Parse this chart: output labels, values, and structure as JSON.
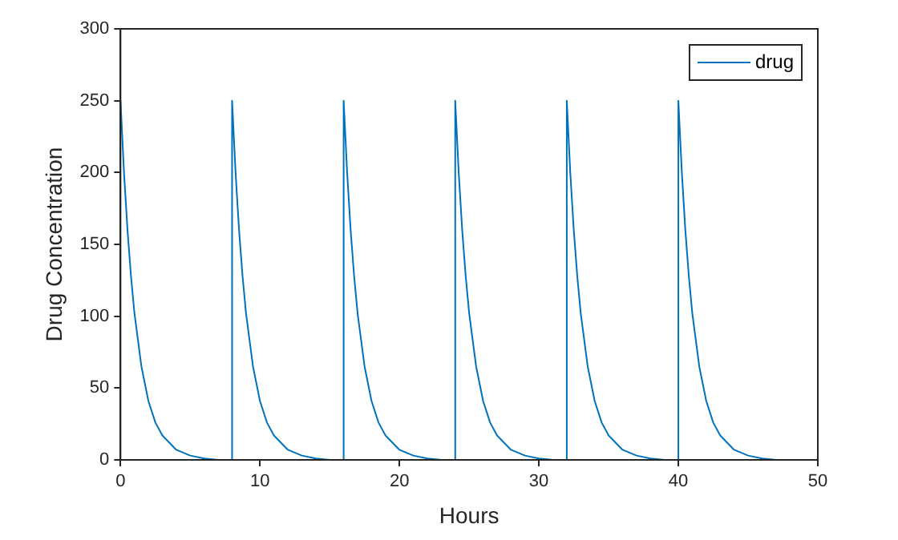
{
  "chart_data": {
    "type": "line",
    "xlabel": "Hours",
    "ylabel": "Drug Concentration",
    "xlim": [
      0,
      50
    ],
    "xticks": [
      0,
      10,
      20,
      30,
      40,
      50
    ],
    "ylim": [
      0,
      300
    ],
    "yticks": [
      0,
      50,
      100,
      150,
      200,
      250,
      300
    ],
    "grid": false,
    "legend": "top right",
    "marker": "none",
    "line_style": "solid",
    "series": [
      {
        "name": "drug",
        "color": "#0072bd",
        "x": [
          0,
          0.25,
          0.5,
          0.75,
          1,
          1.5,
          2,
          2.5,
          3,
          4,
          5,
          6,
          7,
          8,
          8,
          8.25,
          8.5,
          8.75,
          9,
          9.5,
          10,
          10.5,
          11,
          12,
          13,
          14,
          15,
          16,
          16,
          16.25,
          16.5,
          16.75,
          17,
          17.5,
          18,
          18.5,
          19,
          20,
          21,
          22,
          23,
          24,
          24,
          24.25,
          24.5,
          24.75,
          25,
          25.5,
          26,
          26.5,
          27,
          28,
          29,
          30,
          31,
          32,
          32,
          32.25,
          32.5,
          32.75,
          33,
          33.5,
          34,
          34.5,
          35,
          36,
          37,
          38,
          39,
          40,
          40,
          40.25,
          40.5,
          40.75,
          41,
          41.5,
          42,
          42.5,
          43,
          44,
          45,
          46,
          47
        ],
        "values": [
          250,
          200,
          160,
          128,
          102,
          65,
          41,
          26,
          17,
          7,
          3,
          1,
          0,
          0,
          250,
          200,
          160,
          128,
          102,
          65,
          41,
          26,
          17,
          7,
          3,
          1,
          0,
          0,
          250,
          200,
          160,
          128,
          102,
          65,
          41,
          26,
          17,
          7,
          3,
          1,
          0,
          0,
          250,
          200,
          160,
          128,
          102,
          65,
          41,
          26,
          17,
          7,
          3,
          1,
          0,
          0,
          250,
          200,
          160,
          128,
          102,
          65,
          41,
          26,
          17,
          7,
          3,
          1,
          0,
          0,
          250,
          200,
          160,
          128,
          102,
          65,
          41,
          26,
          17,
          7,
          3,
          1,
          0
        ]
      }
    ]
  }
}
